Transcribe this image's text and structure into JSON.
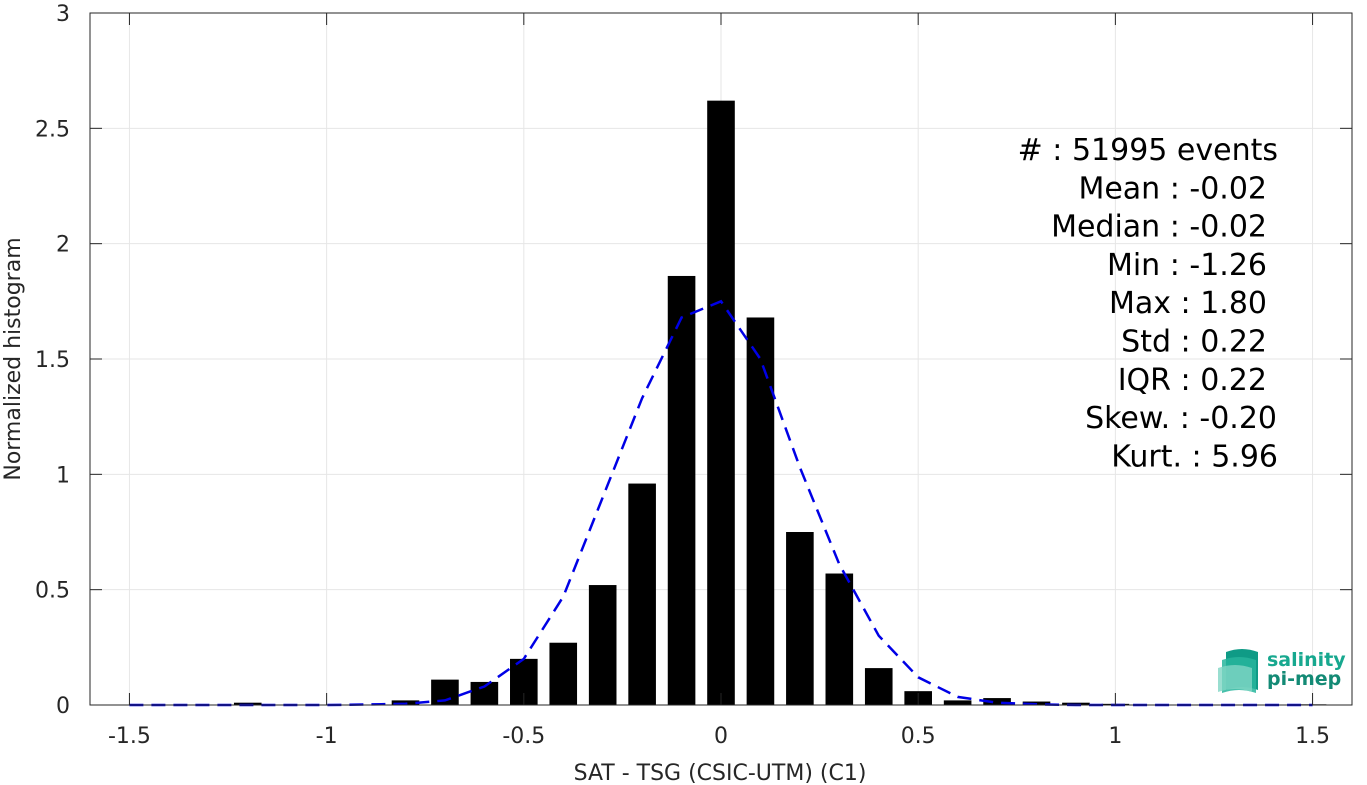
{
  "chart_data": {
    "type": "bar",
    "xlabel": "SAT - TSG (CSIC-UTM) (C1)",
    "ylabel": "Normalized histogram",
    "xlim": [
      -1.6,
      1.6
    ],
    "ylim": [
      0,
      3
    ],
    "xticks": [
      -1.5,
      -1,
      -0.5,
      0,
      0.5,
      1,
      1.5
    ],
    "xtick_labels": [
      "-1.5",
      "-1",
      "-0.5",
      "0",
      "0.5",
      "1",
      "1.5"
    ],
    "yticks": [
      0,
      0.5,
      1,
      1.5,
      2,
      2.5,
      3
    ],
    "ytick_labels": [
      "0",
      "0.5",
      "1",
      "1.5",
      "2",
      "2.5",
      "3"
    ],
    "grid": true,
    "bar_width": 0.07,
    "bar_color": "#000000",
    "bars": {
      "x": [
        -1.2,
        -0.8,
        -0.7,
        -0.6,
        -0.5,
        -0.4,
        -0.3,
        -0.2,
        -0.1,
        0.0,
        0.1,
        0.2,
        0.3,
        0.4,
        0.5,
        0.6,
        0.7,
        0.8,
        0.9,
        1.0,
        1.5
      ],
      "values": [
        0.01,
        0.02,
        0.11,
        0.1,
        0.2,
        0.27,
        0.52,
        0.96,
        1.86,
        2.62,
        1.68,
        0.75,
        0.57,
        0.16,
        0.06,
        0.02,
        0.03,
        0.015,
        0.01,
        0.005,
        0.003
      ]
    },
    "fit_line": {
      "style": "dashed",
      "color": "#0000e6",
      "x": [
        -1.5,
        -1.4,
        -1.3,
        -1.2,
        -1.1,
        -1.0,
        -0.9,
        -0.8,
        -0.7,
        -0.6,
        -0.5,
        -0.4,
        -0.3,
        -0.2,
        -0.1,
        0.0,
        0.1,
        0.2,
        0.3,
        0.4,
        0.5,
        0.6,
        0.7,
        0.8,
        0.9,
        1.0,
        1.1,
        1.2,
        1.3,
        1.4,
        1.5
      ],
      "y": [
        0.0,
        0.0,
        0.0,
        0.0,
        0.0,
        0.0,
        0.002,
        0.005,
        0.02,
        0.08,
        0.2,
        0.47,
        0.9,
        1.33,
        1.68,
        1.75,
        1.5,
        1.03,
        0.61,
        0.3,
        0.12,
        0.035,
        0.01,
        0.003,
        0.0,
        0.0,
        0.0,
        0.0,
        0.0,
        0.0,
        0.0
      ]
    },
    "annotations": [
      "#  : 51995 events",
      "Mean : -0.02",
      "Median : -0.02",
      "Min : -1.26",
      "Max : 1.80",
      "Std : 0.22",
      "IQR : 0.22",
      "Skew. : -0.20",
      "Kurt. : 5.96"
    ]
  },
  "logo": {
    "line1": "salinity",
    "line2": "pi-mep",
    "color": "#17a88f"
  }
}
